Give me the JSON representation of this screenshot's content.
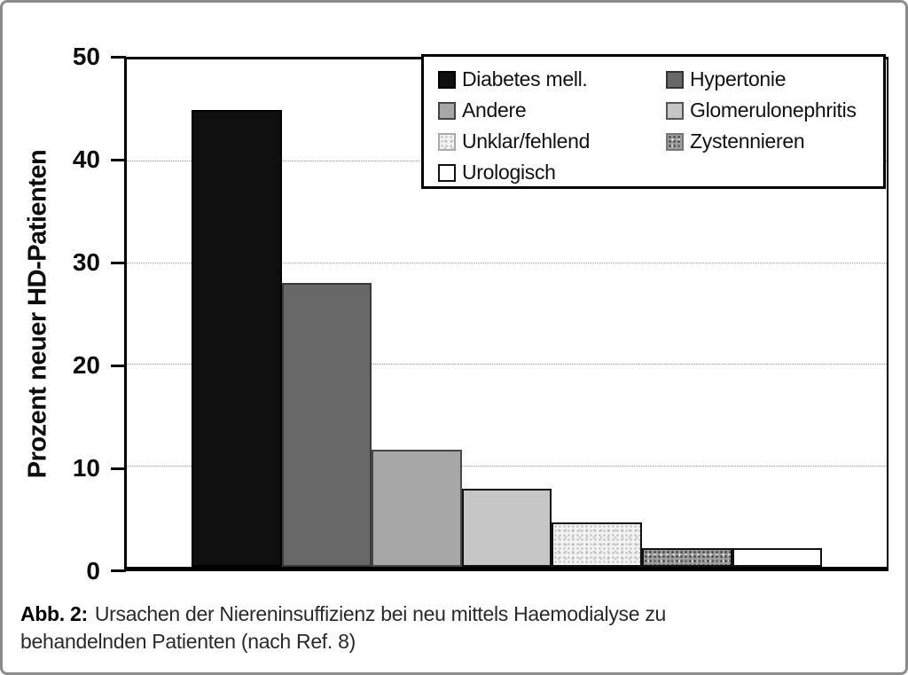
{
  "figure": {
    "caption": {
      "prefix": "Abb. 2:",
      "line1": "Ursachen der Niereninsuffizienz bei neu mittels Haemodialyse zu",
      "line2": "behandelnden Patienten (nach Ref. 8)"
    },
    "y_tick_labels": [
      "50",
      "40",
      "30",
      "20",
      "10",
      "0"
    ]
  },
  "chart_data": {
    "type": "bar",
    "title": "",
    "categories": [
      "Diabetes mell.",
      "Hypertonie",
      "Andere",
      "Glomerulonephritis",
      "Unklar/fehlend",
      "Zystennieren",
      "Urologisch"
    ],
    "values": [
      45,
      28,
      11.5,
      7.7,
      4.4,
      1.8,
      1.8
    ],
    "xlabel": "",
    "ylabel": "Prozent neuer HD-Patienten",
    "ylim": [
      0,
      50
    ],
    "yticks": [
      0,
      10,
      20,
      30,
      40,
      50
    ],
    "grid": "horizontal-dotted",
    "legend_position": "top-right-inside",
    "legend_columns": 2,
    "bar_styles": [
      {
        "fill": "#0f0f0f",
        "texture": "none",
        "stroke": "#000000",
        "swatch_stroke": "#000000"
      },
      {
        "fill": "#686868",
        "texture": "none",
        "stroke": "#3a3a3a",
        "swatch_stroke": "#333333"
      },
      {
        "fill": "#a7a7a7",
        "texture": "none",
        "stroke": "#474747",
        "swatch_stroke": "#444444"
      },
      {
        "fill": "#c6c6c6",
        "texture": "none",
        "stroke": "#111111",
        "swatch_stroke": "#555555"
      },
      {
        "fill": "#f3f3f3",
        "texture": "light",
        "stroke": "#111111",
        "swatch_stroke": "#aaaaaa"
      },
      {
        "fill": "#a0a0a0",
        "texture": "dark",
        "stroke": "#111111",
        "swatch_stroke": "#777777"
      },
      {
        "fill": "#ffffff",
        "texture": "none",
        "stroke": "#111111",
        "swatch_stroke": "#111111"
      }
    ]
  }
}
